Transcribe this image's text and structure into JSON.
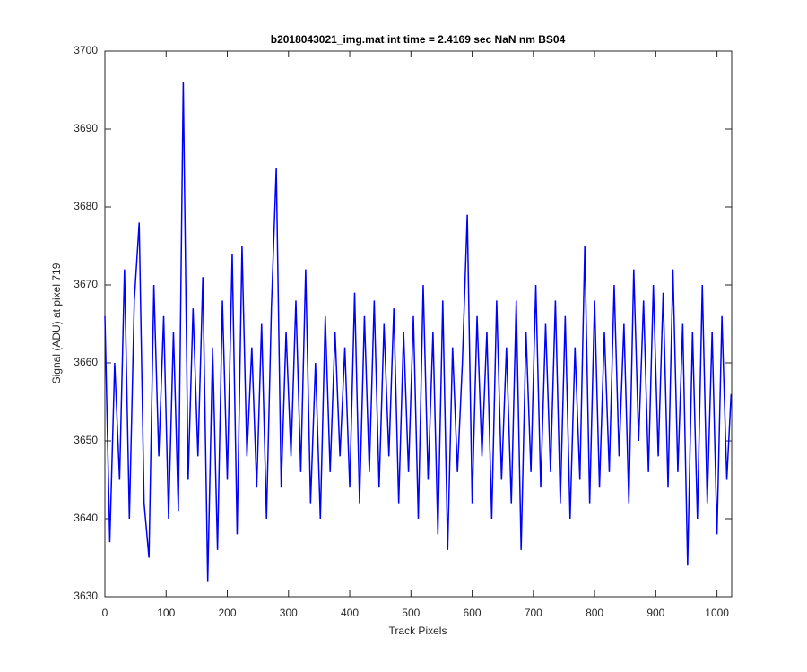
{
  "chart_data": {
    "type": "line",
    "title": "b2018043021_img.mat int time = 2.4169 sec  NaN nm BS04",
    "xlabel": "Track Pixels",
    "ylabel": "Signal (ADU) at pixel 719",
    "color": "#0000ff",
    "x": [
      0,
      8,
      16,
      24,
      32,
      40,
      48,
      56,
      64,
      72,
      80,
      88,
      96,
      104,
      112,
      120,
      128,
      136,
      144,
      152,
      160,
      168,
      176,
      184,
      192,
      200,
      208,
      216,
      224,
      232,
      240,
      248,
      256,
      264,
      272,
      280,
      288,
      296,
      304,
      312,
      320,
      328,
      336,
      344,
      352,
      360,
      368,
      376,
      384,
      392,
      400,
      408,
      416,
      424,
      432,
      440,
      448,
      456,
      464,
      472,
      480,
      488,
      496,
      504,
      512,
      520,
      528,
      536,
      544,
      552,
      560,
      568,
      576,
      584,
      592,
      600,
      608,
      616,
      624,
      632,
      640,
      648,
      656,
      664,
      672,
      680,
      688,
      696,
      704,
      712,
      720,
      728,
      736,
      744,
      752,
      760,
      768,
      776,
      784,
      792,
      800,
      808,
      816,
      824,
      832,
      840,
      848,
      856,
      864,
      872,
      880,
      888,
      896,
      904,
      912,
      920,
      928,
      936,
      944,
      952,
      960,
      968,
      976,
      984,
      992,
      1000,
      1008,
      1016,
      1023
    ],
    "values": [
      3666,
      3637,
      3660,
      3645,
      3672,
      3640,
      3668,
      3678,
      3642,
      3635,
      3670,
      3648,
      3666,
      3640,
      3664,
      3641,
      3696,
      3645,
      3667,
      3648,
      3671,
      3632,
      3662,
      3636,
      3668,
      3645,
      3674,
      3638,
      3675,
      3648,
      3662,
      3644,
      3665,
      3640,
      3667,
      3685,
      3644,
      3664,
      3648,
      3668,
      3646,
      3672,
      3642,
      3660,
      3640,
      3666,
      3646,
      3664,
      3648,
      3662,
      3644,
      3669,
      3642,
      3666,
      3646,
      3668,
      3644,
      3665,
      3648,
      3667,
      3642,
      3664,
      3646,
      3666,
      3640,
      3670,
      3645,
      3664,
      3638,
      3668,
      3636,
      3662,
      3646,
      3660,
      3679,
      3642,
      3666,
      3648,
      3664,
      3640,
      3668,
      3645,
      3662,
      3642,
      3668,
      3636,
      3664,
      3646,
      3670,
      3644,
      3665,
      3646,
      3668,
      3642,
      3666,
      3640,
      3662,
      3645,
      3675,
      3642,
      3668,
      3644,
      3664,
      3646,
      3670,
      3648,
      3665,
      3642,
      3672,
      3650,
      3668,
      3646,
      3670,
      3648,
      3669,
      3644,
      3672,
      3646,
      3665,
      3634,
      3664,
      3640,
      3670,
      3642,
      3664,
      3638,
      3666,
      3645,
      3656
    ],
    "xlim": [
      0,
      1024
    ],
    "ylim": [
      3630,
      3700
    ],
    "xticks": [
      0,
      100,
      200,
      300,
      400,
      500,
      600,
      700,
      800,
      900,
      1000
    ],
    "yticks": [
      3630,
      3640,
      3650,
      3660,
      3670,
      3680,
      3690,
      3700
    ]
  }
}
